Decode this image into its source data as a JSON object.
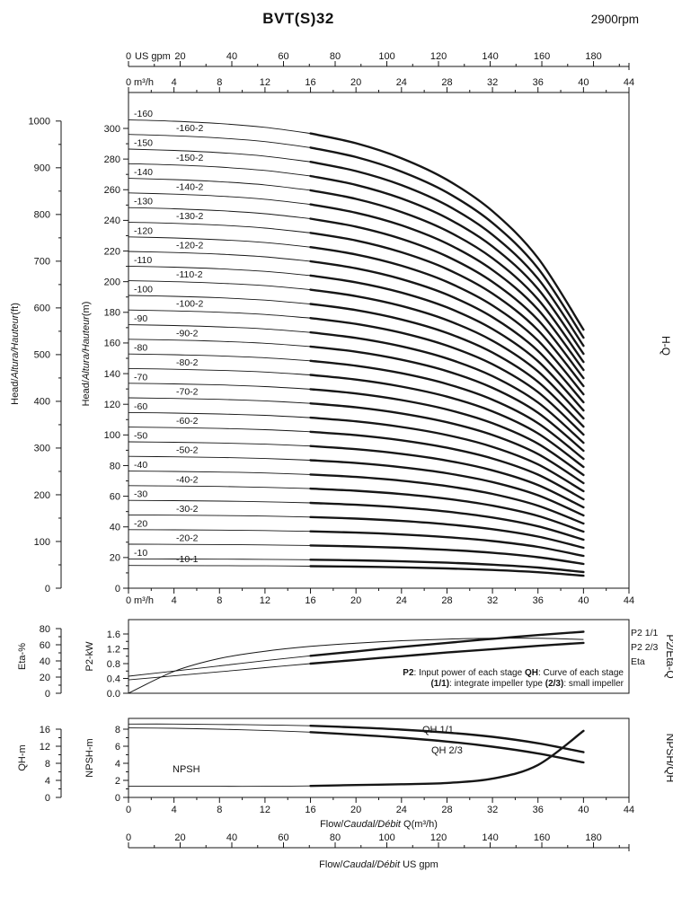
{
  "title": "BVT(S)32",
  "rpm": "2900rpm",
  "ink_color": "#161616",
  "flow_axes": {
    "m3h": {
      "unit": "m³/h",
      "min": 0,
      "max": 44,
      "major": 4,
      "minor": 2
    },
    "usgpm": {
      "unit": "US gpm",
      "min": 0,
      "max": 180,
      "major": 20,
      "minor": 10,
      "gpm_per_m3h": 4.40287
    },
    "bottom_axis_title_m3h": [
      {
        "t": "Flow/"
      },
      {
        "t": "Caudal/Débit",
        "i": true
      },
      {
        "t": " Q(m³/h)"
      }
    ],
    "bottom_axis_title_gpm": [
      {
        "t": "Flow/"
      },
      {
        "t": "Caudal/Débit",
        "i": true
      },
      {
        "t": "  US gpm"
      }
    ]
  },
  "chart_data": [
    {
      "id": "hq",
      "type": "line",
      "title_right": "H-Q",
      "xlabel": "Q (m³/h)",
      "head_axis_m": {
        "label_parts": [
          {
            "t": "Head/"
          },
          {
            "t": "Altura/Hauteur",
            "i": true
          },
          {
            "t": "(m)"
          }
        ],
        "min": 0,
        "max": 300,
        "major": 20,
        "minor": 10
      },
      "head_axis_ft": {
        "label_parts": [
          {
            "t": "Head/"
          },
          {
            "t": "Altura/Hauteur",
            "i": true
          },
          {
            "t": "(ft)"
          }
        ],
        "min": 0,
        "max": 1000,
        "major": 100,
        "minor": 50
      },
      "q_points": [
        0,
        4,
        8,
        12,
        16,
        20,
        24,
        28,
        32,
        36,
        40
      ],
      "droop_factors": [
        1,
        0.997,
        0.992,
        0.984,
        0.971,
        0.95,
        0.918,
        0.872,
        0.805,
        0.705,
        0.552
      ],
      "bold_from_q": 16,
      "curves": [
        {
          "label": "-160",
          "shutoff_head_m": 305.6
        },
        {
          "label": "-160-2",
          "shutoff_head_m": 296.1,
          "small": true
        },
        {
          "label": "-150",
          "shutoff_head_m": 286.5
        },
        {
          "label": "-150-2",
          "shutoff_head_m": 277.0,
          "small": true
        },
        {
          "label": "-140",
          "shutoff_head_m": 267.4
        },
        {
          "label": "-140-2",
          "shutoff_head_m": 257.9,
          "small": true
        },
        {
          "label": "-130",
          "shutoff_head_m": 248.3
        },
        {
          "label": "-130-2",
          "shutoff_head_m": 238.8,
          "small": true
        },
        {
          "label": "-120",
          "shutoff_head_m": 229.2
        },
        {
          "label": "-120-2",
          "shutoff_head_m": 219.7,
          "small": true
        },
        {
          "label": "-110",
          "shutoff_head_m": 210.1
        },
        {
          "label": "-110-2",
          "shutoff_head_m": 200.6,
          "small": true
        },
        {
          "label": "-100",
          "shutoff_head_m": 191.0
        },
        {
          "label": "-100-2",
          "shutoff_head_m": 181.5,
          "small": true
        },
        {
          "label": "-90",
          "shutoff_head_m": 171.9
        },
        {
          "label": "-90-2",
          "shutoff_head_m": 162.4,
          "small": true
        },
        {
          "label": "-80",
          "shutoff_head_m": 152.8
        },
        {
          "label": "-80-2",
          "shutoff_head_m": 143.3,
          "small": true
        },
        {
          "label": "-70",
          "shutoff_head_m": 133.7
        },
        {
          "label": "-70-2",
          "shutoff_head_m": 124.2,
          "small": true
        },
        {
          "label": "-60",
          "shutoff_head_m": 114.6
        },
        {
          "label": "-60-2",
          "shutoff_head_m": 105.1,
          "small": true
        },
        {
          "label": "-50",
          "shutoff_head_m": 95.5
        },
        {
          "label": "-50-2",
          "shutoff_head_m": 86.0,
          "small": true
        },
        {
          "label": "-40",
          "shutoff_head_m": 76.4
        },
        {
          "label": "-40-2",
          "shutoff_head_m": 66.9,
          "small": true
        },
        {
          "label": "-30",
          "shutoff_head_m": 57.3
        },
        {
          "label": "-30-2",
          "shutoff_head_m": 47.8,
          "small": true
        },
        {
          "label": "-20",
          "shutoff_head_m": 38.2
        },
        {
          "label": "-20-2",
          "shutoff_head_m": 28.7,
          "small": true
        },
        {
          "label": "-10",
          "shutoff_head_m": 19.1
        },
        {
          "label": "-10-1",
          "shutoff_head_m": 14.8,
          "small": true
        }
      ]
    },
    {
      "id": "p2eta",
      "type": "line",
      "title_right": "P2/Eta-Q",
      "eta_axis": {
        "label": "Eta-%",
        "min": 0,
        "max": 80,
        "major": 20,
        "minor": 10,
        "decimals": 0
      },
      "p2_axis": {
        "label": "P2-kW",
        "min": 0,
        "max": 1.6,
        "major": 0.4,
        "minor": 0.2,
        "decimals": 1
      },
      "q_points": [
        0,
        4,
        8,
        12,
        16,
        20,
        24,
        28,
        32,
        36,
        40
      ],
      "curves": [
        {
          "label": "P2 1/1",
          "axis": "p2",
          "bold_from_q": 16,
          "values": [
            0.46,
            0.6,
            0.74,
            0.88,
            1.01,
            1.13,
            1.25,
            1.36,
            1.47,
            1.57,
            1.66
          ]
        },
        {
          "label": "P2 2/3",
          "axis": "p2",
          "bold_from_q": 16,
          "values": [
            0.36,
            0.47,
            0.58,
            0.69,
            0.8,
            0.9,
            1.0,
            1.1,
            1.19,
            1.28,
            1.36
          ]
        },
        {
          "label": "Eta",
          "axis": "eta",
          "values": [
            0,
            27,
            43,
            52,
            58,
            62,
            65,
            67,
            68,
            68,
            66.5
          ]
        }
      ],
      "note_lines": [
        [
          {
            "t": "P2",
            "b": true
          },
          {
            "t": ": Input power of each stage  "
          },
          {
            "t": "QH",
            "b": true
          },
          {
            "t": ": Curve of each stage"
          }
        ],
        [
          {
            "t": "(1/1)",
            "b": true
          },
          {
            "t": ": integrate impeller type  "
          },
          {
            "t": "(2/3)",
            "b": true
          },
          {
            "t": ": small impeller"
          }
        ]
      ]
    },
    {
      "id": "npshqh",
      "type": "line",
      "title_right": "NPSH/QH",
      "qh_axis": {
        "label": "QH-m",
        "min": 0,
        "max": 16,
        "major": 4,
        "minor": 2,
        "decimals": 0
      },
      "npsh_axis": {
        "label": "NPSH-m",
        "min": 0,
        "max": 8,
        "major": 2,
        "minor": 1,
        "decimals": 0
      },
      "q_points": [
        0,
        4,
        8,
        12,
        16,
        20,
        24,
        28,
        32,
        36,
        40
      ],
      "curves": [
        {
          "label": "QH 1/1",
          "axis": "qh",
          "bold_from_q": 16,
          "values": [
            17.2,
            17.2,
            17.1,
            17.0,
            16.8,
            16.4,
            15.9,
            15.2,
            14.2,
            12.7,
            10.6
          ]
        },
        {
          "label": "QH 2/3",
          "axis": "qh",
          "bold_from_q": 16,
          "values": [
            16.3,
            16.2,
            16.0,
            15.7,
            15.3,
            14.7,
            14.0,
            13.1,
            11.9,
            10.3,
            8.2
          ]
        },
        {
          "label": "NPSH",
          "axis": "npsh",
          "bold_from_q": 16,
          "values": [
            1.3,
            1.3,
            1.3,
            1.3,
            1.35,
            1.45,
            1.55,
            1.7,
            2.2,
            3.8,
            7.8
          ]
        }
      ]
    }
  ]
}
